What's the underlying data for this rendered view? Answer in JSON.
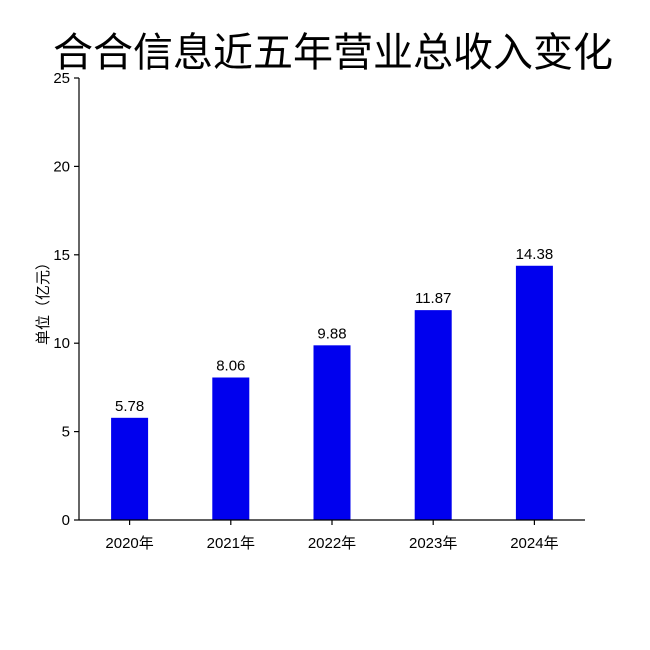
{
  "chart_data": {
    "type": "bar",
    "title": "合合信息近五年营业总收入变化",
    "ylabel": "单位（亿元）",
    "xlabel": "",
    "categories": [
      "2020年",
      "2021年",
      "2022年",
      "2023年",
      "2024年"
    ],
    "values": [
      5.78,
      8.06,
      9.88,
      11.87,
      14.38
    ],
    "value_labels": [
      "5.78",
      "8.06",
      "9.88",
      "11.87",
      "14.38"
    ],
    "ylim": [
      0,
      25
    ],
    "yticks": [
      0,
      5,
      10,
      15,
      20,
      25
    ],
    "ytick_labels": [
      "0",
      "5",
      "10",
      "15",
      "20",
      "25"
    ],
    "grid": false,
    "bar_color": "#0000ee"
  }
}
